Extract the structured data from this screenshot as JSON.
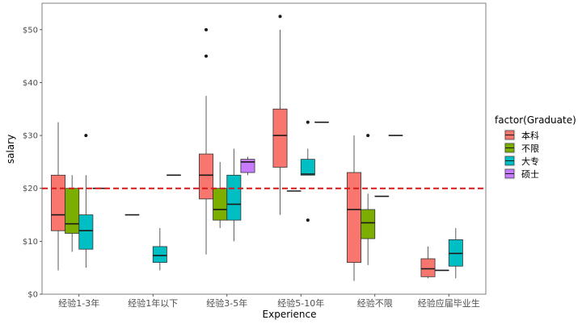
{
  "chart_data": {
    "type": "boxplot",
    "xlabel": "Experience",
    "ylabel": "salary",
    "ylim": [
      0,
      55
    ],
    "y_ticks": [
      0,
      10,
      20,
      30,
      40,
      50
    ],
    "y_tick_labels": [
      "$0",
      "$10",
      "$20",
      "$30",
      "$40",
      "$50"
    ],
    "categories": [
      "经验1-3年",
      "经验1年以下",
      "经验3-5年",
      "经验5-10年",
      "经验不限",
      "经验应届毕业生"
    ],
    "reference_line": {
      "y": 20,
      "style": "dashed",
      "color": "#d7191c"
    },
    "grid": false,
    "legend": {
      "title": "factor(Graduate)",
      "position": "right",
      "entries": [
        {
          "name": "本科",
          "color": "#F8766D"
        },
        {
          "name": "不限",
          "color": "#7CAE00"
        },
        {
          "name": "大专",
          "color": "#00BFC4"
        },
        {
          "name": "硕士",
          "color": "#C77CFF"
        }
      ]
    },
    "series": [
      {
        "name": "本科",
        "color": "#F8766D",
        "boxes": [
          {
            "category": "经验1-3年",
            "min": 4.5,
            "q1": 12,
            "median": 15,
            "q3": 22.5,
            "max": 32.5,
            "outliers": []
          },
          {
            "category": "经验1年以下",
            "min": 15,
            "q1": 15,
            "median": 15,
            "q3": 15,
            "max": 15,
            "outliers": []
          },
          {
            "category": "经验3-5年",
            "min": 7.5,
            "q1": 18,
            "median": 22.5,
            "q3": 26.5,
            "max": 37.5,
            "outliers": [
              45,
              50
            ]
          },
          {
            "category": "经验5-10年",
            "min": 15,
            "q1": 24,
            "median": 30,
            "q3": 35,
            "max": 50,
            "outliers": [
              52.5
            ]
          },
          {
            "category": "经验不限",
            "min": 2.5,
            "q1": 6,
            "median": 16,
            "q3": 23,
            "max": 30,
            "outliers": []
          },
          {
            "category": "经验应届毕业生",
            "min": 3,
            "q1": 3.3,
            "median": 4.8,
            "q3": 6.7,
            "max": 9,
            "outliers": []
          }
        ]
      },
      {
        "name": "不限",
        "color": "#7CAE00",
        "boxes": [
          {
            "category": "经验1-3年",
            "min": 8,
            "q1": 11.5,
            "median": 13.3,
            "q3": 20,
            "max": 22.5,
            "outliers": []
          },
          {
            "category": "经验3-5年",
            "min": 12.5,
            "q1": 14,
            "median": 16,
            "q3": 20,
            "max": 25,
            "outliers": []
          },
          {
            "category": "经验5-10年",
            "min": 19.5,
            "q1": 19.5,
            "median": 19.5,
            "q3": 19.5,
            "max": 19.5,
            "outliers": []
          },
          {
            "category": "经验不限",
            "min": 5.5,
            "q1": 10.5,
            "median": 13.5,
            "q3": 16,
            "max": 19,
            "outliers": [
              30
            ]
          },
          {
            "category": "经验应届毕业生",
            "min": 4.5,
            "q1": 4.5,
            "median": 4.5,
            "q3": 4.5,
            "max": 4.5,
            "outliers": []
          }
        ]
      },
      {
        "name": "大专",
        "color": "#00BFC4",
        "boxes": [
          {
            "category": "经验1-3年",
            "min": 5,
            "q1": 8.5,
            "median": 12,
            "q3": 15,
            "max": 22.5,
            "outliers": [
              30
            ]
          },
          {
            "category": "经验1年以下",
            "min": 4.5,
            "q1": 6,
            "median": 7.3,
            "q3": 9,
            "max": 12.5,
            "outliers": []
          },
          {
            "category": "经验3-5年",
            "min": 10,
            "q1": 14,
            "median": 17,
            "q3": 22.5,
            "max": 27.5,
            "outliers": []
          },
          {
            "category": "经验5-10年",
            "min": 22.5,
            "q1": 22.5,
            "median": 22.7,
            "q3": 25.5,
            "max": 27.5,
            "outliers": [
              14,
              32.5
            ]
          },
          {
            "category": "经验不限",
            "min": 18.5,
            "q1": 18.5,
            "median": 18.5,
            "q3": 18.5,
            "max": 18.5,
            "outliers": []
          },
          {
            "category": "经验应届毕业生",
            "min": 3,
            "q1": 5.3,
            "median": 7.7,
            "q3": 10.3,
            "max": 12.5,
            "outliers": []
          }
        ]
      },
      {
        "name": "硕士",
        "color": "#C77CFF",
        "boxes": [
          {
            "category": "经验1-3年",
            "min": 20,
            "q1": 20,
            "median": 20,
            "q3": 20,
            "max": 20,
            "outliers": []
          },
          {
            "category": "经验1年以下",
            "min": 22.5,
            "q1": 22.5,
            "median": 22.5,
            "q3": 22.5,
            "max": 22.5,
            "outliers": []
          },
          {
            "category": "经验3-5年",
            "min": 22.5,
            "q1": 23,
            "median": 25,
            "q3": 25.5,
            "max": 26,
            "outliers": []
          },
          {
            "category": "经验5-10年",
            "min": 32.5,
            "q1": 32.5,
            "median": 32.5,
            "q3": 32.5,
            "max": 32.5,
            "outliers": []
          },
          {
            "category": "经验不限",
            "min": 30,
            "q1": 30,
            "median": 30,
            "q3": 30,
            "max": 30,
            "outliers": []
          }
        ]
      }
    ]
  }
}
